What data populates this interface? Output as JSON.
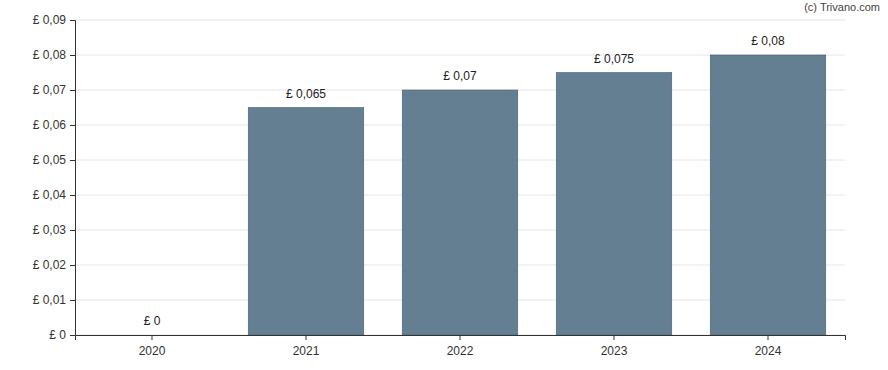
{
  "chart_data": {
    "type": "bar",
    "categories": [
      "2020",
      "2021",
      "2022",
      "2023",
      "2024"
    ],
    "values": [
      0,
      0.065,
      0.07,
      0.075,
      0.08
    ],
    "value_labels": [
      "£ 0",
      "£ 0,065",
      "£ 0,07",
      "£ 0,075",
      "£ 0,08"
    ],
    "data_labels": true,
    "color": "#647f92",
    "ylim": [
      0,
      0.09
    ],
    "yticks": [
      {
        "value": 0,
        "label": "£ 0"
      },
      {
        "value": 0.01,
        "label": "£ 0,01"
      },
      {
        "value": 0.02,
        "label": "£ 0,02"
      },
      {
        "value": 0.03,
        "label": "£ 0,03"
      },
      {
        "value": 0.04,
        "label": "£ 0,04"
      },
      {
        "value": 0.05,
        "label": "£ 0,05"
      },
      {
        "value": 0.06,
        "label": "£ 0,06"
      },
      {
        "value": 0.07,
        "label": "£ 0,07"
      },
      {
        "value": 0.08,
        "label": "£ 0,08"
      },
      {
        "value": 0.09,
        "label": "£ 0,09"
      }
    ],
    "grid": true,
    "annotations": [
      {
        "text": "(c) Trivano.com"
      }
    ]
  }
}
